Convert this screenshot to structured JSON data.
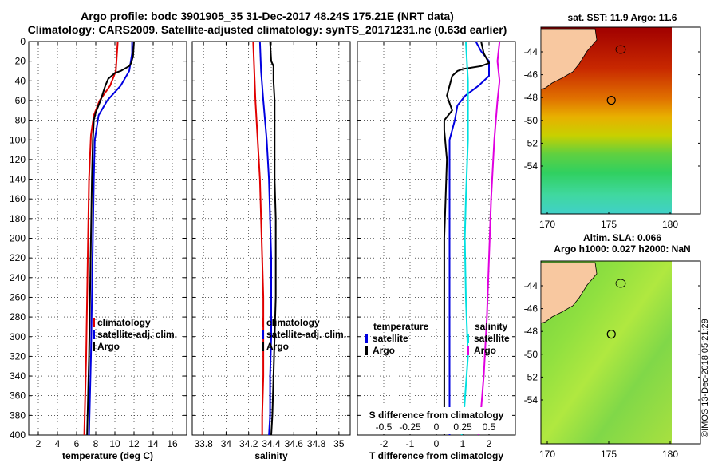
{
  "header": {
    "line1": "Argo profile: bodc 3901905_35 31-Dec-2017 48.24S 175.21E (NRT data)",
    "line2": "Climatology: CARS2009. Satellite-adjusted climatology: synTS_20171231.nc (0.63d earlier)"
  },
  "colors": {
    "climatology": "#e00000",
    "satellite_adj": "#0000e0",
    "argo": "#000000",
    "satellite_s": "#00e0e0",
    "argo_s": "#e000e0"
  },
  "chart_data": [
    {
      "type": "line",
      "name": "temperature",
      "xlabel": "temperature (deg C)",
      "xlim": [
        1,
        17.5
      ],
      "xticks": [
        2,
        4,
        6,
        8,
        10,
        12,
        14,
        16
      ],
      "ylim": [
        400,
        0
      ],
      "yticks": [
        0,
        20,
        40,
        60,
        80,
        100,
        120,
        140,
        160,
        180,
        200,
        220,
        240,
        260,
        280,
        300,
        320,
        340,
        360,
        380,
        400
      ],
      "legend": [
        "climatology",
        "satellite-adj. clim.",
        "Argo"
      ],
      "series": [
        {
          "name": "climatology",
          "color": "climatology",
          "points": [
            [
              10.3,
              0
            ],
            [
              10.2,
              15
            ],
            [
              10.1,
              30
            ],
            [
              9.5,
              45
            ],
            [
              8.4,
              60
            ],
            [
              7.8,
              75
            ],
            [
              7.5,
              95
            ],
            [
              7.3,
              140
            ],
            [
              7.2,
              200
            ],
            [
              7.1,
              260
            ],
            [
              7.0,
              320
            ],
            [
              6.9,
              360
            ],
            [
              6.8,
              400
            ]
          ]
        },
        {
          "name": "satellite-adj. clim.",
          "color": "satellite_adj",
          "points": [
            [
              11.8,
              0
            ],
            [
              11.8,
              12
            ],
            [
              11.5,
              30
            ],
            [
              10.6,
              45
            ],
            [
              9.2,
              60
            ],
            [
              8.3,
              75
            ],
            [
              7.9,
              100
            ],
            [
              7.8,
              140
            ],
            [
              7.7,
              200
            ],
            [
              7.6,
              260
            ],
            [
              7.5,
              320
            ],
            [
              7.4,
              360
            ],
            [
              7.3,
              400
            ]
          ]
        },
        {
          "name": "Argo",
          "color": "argo",
          "points": [
            [
              12.0,
              0
            ],
            [
              11.9,
              15
            ],
            [
              11.7,
              22
            ],
            [
              11.5,
              25
            ],
            [
              10.6,
              30
            ],
            [
              10.0,
              32
            ],
            [
              9.3,
              38
            ],
            [
              9.0,
              45
            ],
            [
              8.5,
              60
            ],
            [
              8.0,
              72
            ],
            [
              7.8,
              80
            ],
            [
              7.7,
              100
            ],
            [
              7.6,
              140
            ],
            [
              7.5,
              200
            ],
            [
              7.4,
              260
            ],
            [
              7.3,
              320
            ],
            [
              7.2,
              360
            ],
            [
              7.1,
              400
            ]
          ]
        }
      ]
    },
    {
      "type": "line",
      "name": "salinity",
      "xlabel": "salinity",
      "xlim": [
        33.7,
        35.1
      ],
      "xticks": [
        33.8,
        34,
        34.2,
        34.4,
        34.6,
        34.8,
        35
      ],
      "xticklabels": [
        "33.8",
        "34",
        "34.2",
        "34.4",
        "34.6",
        "34.8",
        "35"
      ],
      "ylim": [
        400,
        0
      ],
      "legend": [
        "climatology",
        "satellite-adj. clim.",
        "Argo"
      ],
      "series": [
        {
          "name": "climatology",
          "color": "climatology",
          "points": [
            [
              34.24,
              0
            ],
            [
              34.25,
              30
            ],
            [
              34.26,
              60
            ],
            [
              34.28,
              100
            ],
            [
              34.3,
              140
            ],
            [
              34.31,
              180
            ],
            [
              34.32,
              220
            ],
            [
              34.33,
              260
            ],
            [
              34.33,
              300
            ],
            [
              34.33,
              340
            ],
            [
              34.32,
              380
            ],
            [
              34.32,
              400
            ]
          ]
        },
        {
          "name": "satellite-adj. clim.",
          "color": "satellite_adj",
          "points": [
            [
              34.3,
              0
            ],
            [
              34.31,
              30
            ],
            [
              34.33,
              60
            ],
            [
              34.36,
              100
            ],
            [
              34.38,
              140
            ],
            [
              34.39,
              180
            ],
            [
              34.4,
              220
            ],
            [
              34.4,
              260
            ],
            [
              34.4,
              300
            ],
            [
              34.39,
              340
            ],
            [
              34.39,
              380
            ],
            [
              34.38,
              400
            ]
          ]
        },
        {
          "name": "Argo",
          "color": "argo",
          "points": [
            [
              34.39,
              0
            ],
            [
              34.4,
              20
            ],
            [
              34.42,
              25
            ],
            [
              34.42,
              40
            ],
            [
              34.43,
              60
            ],
            [
              34.43,
              100
            ],
            [
              34.43,
              140
            ],
            [
              34.44,
              180
            ],
            [
              34.44,
              220
            ],
            [
              34.44,
              260
            ],
            [
              34.43,
              300
            ],
            [
              34.42,
              340
            ],
            [
              34.41,
              380
            ],
            [
              34.4,
              400
            ]
          ]
        }
      ]
    },
    {
      "type": "line",
      "name": "difference",
      "xlabel": "T difference from climatology",
      "xlabel_top": "S difference from climatology",
      "xlim": [
        -3,
        3
      ],
      "xticks": [
        -2,
        -1,
        0,
        1,
        2
      ],
      "xticks_s": [
        -0.5,
        -0.25,
        0,
        0.25,
        0.5
      ],
      "ylim": [
        400,
        0
      ],
      "legend_temperature_title": "temperature",
      "legend_salinity_title": "salinity",
      "legend": [
        "satellite",
        "Argo"
      ],
      "series": [
        {
          "name": "T satellite",
          "color": "satellite_adj",
          "points": [
            [
              1.5,
              0
            ],
            [
              1.7,
              10
            ],
            [
              2.0,
              20
            ],
            [
              2.0,
              35
            ],
            [
              1.6,
              45
            ],
            [
              1.1,
              55
            ],
            [
              0.8,
              65
            ],
            [
              0.7,
              80
            ],
            [
              0.5,
              100
            ],
            [
              0.5,
              200
            ],
            [
              0.5,
              300
            ],
            [
              0.5,
              400
            ]
          ]
        },
        {
          "name": "T Argo",
          "color": "argo",
          "points": [
            [
              1.7,
              0
            ],
            [
              1.8,
              12
            ],
            [
              2.0,
              22
            ],
            [
              1.7,
              25
            ],
            [
              1.0,
              28
            ],
            [
              0.8,
              30
            ],
            [
              0.6,
              35
            ],
            [
              0.5,
              45
            ],
            [
              0.4,
              55
            ],
            [
              0.6,
              70
            ],
            [
              0.3,
              80
            ],
            [
              0.3,
              90
            ],
            [
              0.4,
              120
            ],
            [
              0.3,
              200
            ],
            [
              0.3,
              300
            ],
            [
              0.3,
              400
            ]
          ]
        },
        {
          "name": "S satellite",
          "color": "satellite_s",
          "points": [
            [
              0.28,
              0
            ],
            [
              0.3,
              40
            ],
            [
              0.3,
              100
            ],
            [
              0.28,
              160
            ],
            [
              0.27,
              200
            ],
            [
              0.28,
              260
            ],
            [
              0.3,
              320
            ],
            [
              0.26,
              380
            ],
            [
              0.24,
              400
            ]
          ]
        },
        {
          "name": "S Argo",
          "color": "argo_s",
          "points": [
            [
              0.6,
              0
            ],
            [
              0.58,
              20
            ],
            [
              0.6,
              40
            ],
            [
              0.58,
              60
            ],
            [
              0.55,
              100
            ],
            [
              0.52,
              160
            ],
            [
              0.5,
              220
            ],
            [
              0.48,
              280
            ],
            [
              0.45,
              340
            ],
            [
              0.42,
              380
            ],
            [
              0.4,
              400
            ]
          ]
        }
      ]
    }
  ],
  "maps": {
    "sst": {
      "title": "sat. SST: 11.9 Argo: 11.6"
    },
    "sla": {
      "title_line1": "Altim. SLA: 0.066",
      "title_line2": "Argo h1000: 0.027 h2000: NaN"
    },
    "lon_ticks": [
      "170",
      "175",
      "180"
    ],
    "lat_ticks": [
      "-44",
      "-46",
      "-48",
      "-50",
      "-52",
      "-54"
    ]
  },
  "credit": "©IMOS 13-Dec-2018 05:21:29"
}
